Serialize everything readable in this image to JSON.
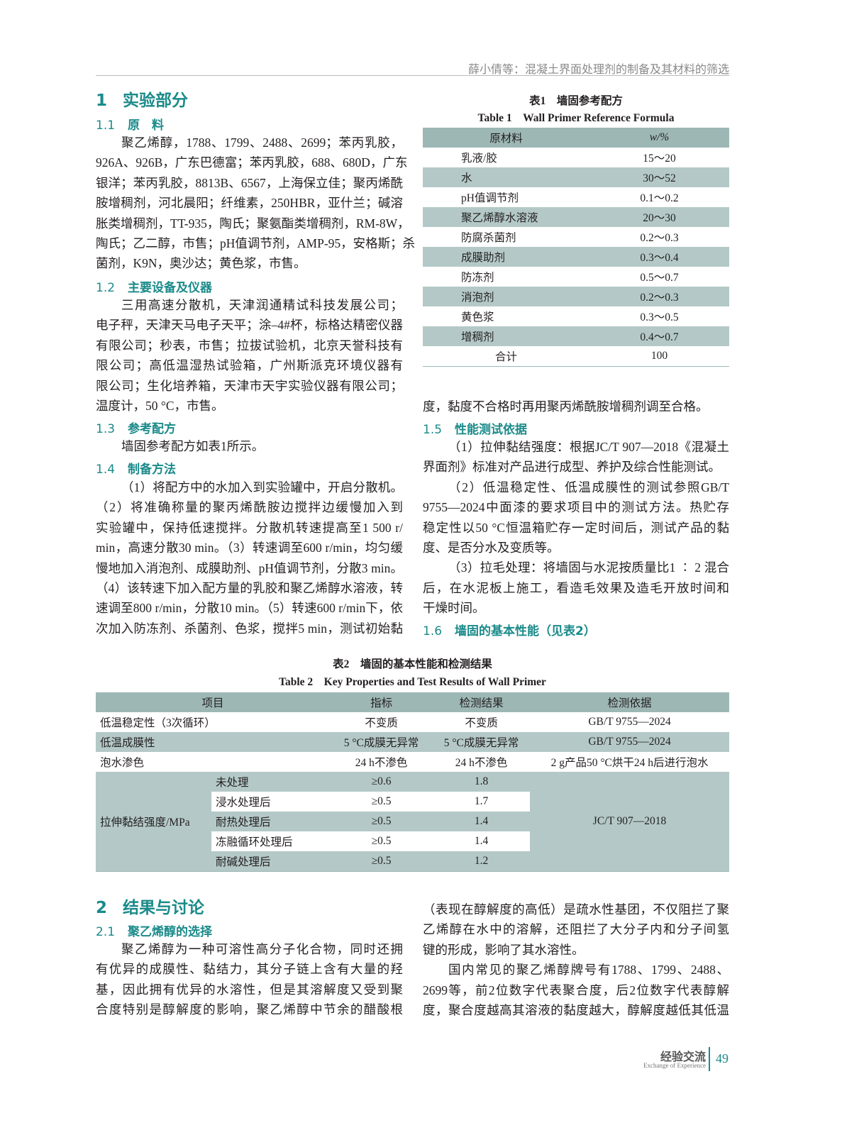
{
  "header": {
    "running_title": "薛小倩等：混凝土界面处理剂的制备及其材料的筛选"
  },
  "sec1": {
    "num": "1",
    "title": "实验部分"
  },
  "s11": {
    "num": "1.1",
    "title": "原　料",
    "lines": [
      "聚乙烯醇，1788、1799、2488、2699；苯丙乳胶，",
      "926A、926B，广东巴德富；苯丙乳胶，688、680D，广东",
      "银洋；苯丙乳胶，8813B、6567，上海保立佳；聚丙烯酰",
      "胺增稠剂，河北晨阳；纤维素，250HBR，亚什兰；碱溶",
      "胀类增稠剂，TT-935，陶氏；聚氨酯类增稠剂，RM-8W，",
      "陶氏；乙二醇，市售；pH值调节剂，AMP-95，安格斯；杀",
      "菌剂，K9N，奥沙达；黄色浆，市售。"
    ]
  },
  "s12": {
    "num": "1.2",
    "title": "主要设备及仪器",
    "lines": [
      "三用高速分散机，天津润通精试科技发展公司；",
      "电子秤，天津天马电子天平；涂–4#杯，标格达精密仪器",
      "有限公司；秒表，市售；拉拔试验机，北京天誉科技有",
      "限公司；高低温湿热试验箱，广州斯派克环境仪器有",
      "限公司；生化培养箱，天津市天宇实验仪器有限公司；",
      "温度计，50 °C，市售。"
    ]
  },
  "s13": {
    "num": "1.3",
    "title": "参考配方",
    "lines": [
      "墙固参考配方如表1所示。"
    ]
  },
  "s14": {
    "num": "1.4",
    "title": "制备方法",
    "lines": [
      "（1）将配方中的水加入到实验罐中，开启分散机。",
      "（2）将准确称量的聚丙烯酰胺边搅拌边缓慢加入到",
      "实验罐中，保持低速搅拌。分散机转速提高至1 500 r/",
      "min，高速分散30 min。（3）转速调至600 r/min，均匀缓",
      "慢地加入消泡剂、成膜助剂、pH值调节剂，分散3 min。",
      "（4）该转速下加入配方量的乳胶和聚乙烯醇水溶液，转",
      "速调至800 r/min，分散10 min。（5）转速600 r/min下，依",
      "次加入防冻剂、杀菌剂、色浆，搅拌5 min，测试初始黏"
    ]
  },
  "s14_cont": {
    "lines": [
      "度，黏度不合格时再用聚丙烯酰胺增稠剂调至合格。"
    ]
  },
  "s15": {
    "num": "1.5",
    "title": "性能测试依据",
    "lines": [
      "（1）拉伸黏结强度：根据JC/T 907—2018《混凝土",
      "界面剂》标准对产品进行成型、养护及综合性能测试。",
      "（2）低温稳定性、低温成膜性的测试参照GB/T",
      "9755—2024中面漆的要求项目中的测试方法。热贮存",
      "稳定性以50 °C恒温箱贮存一定时间后，测试产品的黏",
      "度、是否分水及变质等。",
      "（3）拉毛处理：将墙固与水泥按质量比1 ∶ 2 混合",
      "后，在水泥板上施工，看造毛效果及造毛开放时间和",
      "干燥时间。"
    ]
  },
  "s16": {
    "num": "1.6",
    "title": "墙固的基本性能（见表2）"
  },
  "table1": {
    "caption_cn": "表1　墙固参考配方",
    "caption_en": "Table 1　Wall Primer Reference Formula",
    "headers": [
      "原材料",
      "w/%"
    ],
    "rows": [
      [
        "乳液/胶",
        "15～20"
      ],
      [
        "水",
        "30～52"
      ],
      [
        "pH值调节剂",
        "0.1～0.2"
      ],
      [
        "聚乙烯醇水溶液",
        "20～30"
      ],
      [
        "防腐杀菌剂",
        "0.2～0.3"
      ],
      [
        "成膜助剂",
        "0.3～0.4"
      ],
      [
        "防冻剂",
        "0.5～0.7"
      ],
      [
        "消泡剂",
        "0.2～0.3"
      ],
      [
        "黄色浆",
        "0.3～0.5"
      ],
      [
        "增稠剂",
        "0.4～0.7"
      ]
    ],
    "total": [
      "合计",
      "100"
    ]
  },
  "table2": {
    "caption_cn": "表2　墙固的基本性能和检测结果",
    "caption_en": "Table 2　Key Properties and Test Results of Wall Primer",
    "headers": [
      "项目",
      "指标",
      "检测结果",
      "检测依据"
    ],
    "rows": [
      [
        "低温稳定性（3次循环）",
        "不变质",
        "不变质",
        "GB/T 9755—2024"
      ],
      [
        "低温成膜性",
        "5 °C成膜无异常",
        "5 °C成膜无异常",
        "GB/T 9755—2024"
      ],
      [
        "泡水渗色",
        "24 h不渗色",
        "24 h不渗色",
        "2 g产品50 °C烘干24 h后进行泡水"
      ]
    ],
    "tensile": {
      "label": "拉伸黏结强度/MPa",
      "basis": "JC/T 907—2018",
      "subrows": [
        [
          "未处理",
          "≥0.6",
          "1.8"
        ],
        [
          "浸水处理后",
          "≥0.5",
          "1.7"
        ],
        [
          "耐热处理后",
          "≥0.5",
          "1.4"
        ],
        [
          "冻融循环处理后",
          "≥0.5",
          "1.4"
        ],
        [
          "耐碱处理后",
          "≥0.5",
          "1.2"
        ]
      ]
    }
  },
  "sec2": {
    "num": "2",
    "title": "结果与讨论"
  },
  "s21": {
    "num": "2.1",
    "title": "聚乙烯醇的选择",
    "lines": [
      "聚乙烯醇为一种可溶性高分子化合物，同时还拥",
      "有优异的成膜性、黏结力，其分子链上含有大量的羟",
      "基，因此拥有优异的水溶性，但是其溶解度又受到聚",
      "合度特别是醇解度的影响，聚乙烯醇中节余的醋酸根"
    ]
  },
  "s21_right": {
    "lines": [
      "（表现在醇解度的高低）是疏水性基团，不仅阻拦了聚",
      "乙烯醇在水中的溶解，还阻拦了大分子内和分子间氢",
      "键的形成，影响了其水溶性。",
      "国内常见的聚乙烯醇牌号有1788、1799、2488、",
      "2699等，前2位数字代表聚合度，后2位数字代表醇解",
      "度，聚合度越高其溶液的黏度越大，醇解度越低其低温"
    ]
  },
  "footer": {
    "column_cn": "经验交流",
    "column_en": "Exchange of Experience",
    "page": "49"
  },
  "colors": {
    "accent": "#1b8a8a",
    "table_header": "#9db7b5",
    "table_shade": "#b4c9c7"
  }
}
